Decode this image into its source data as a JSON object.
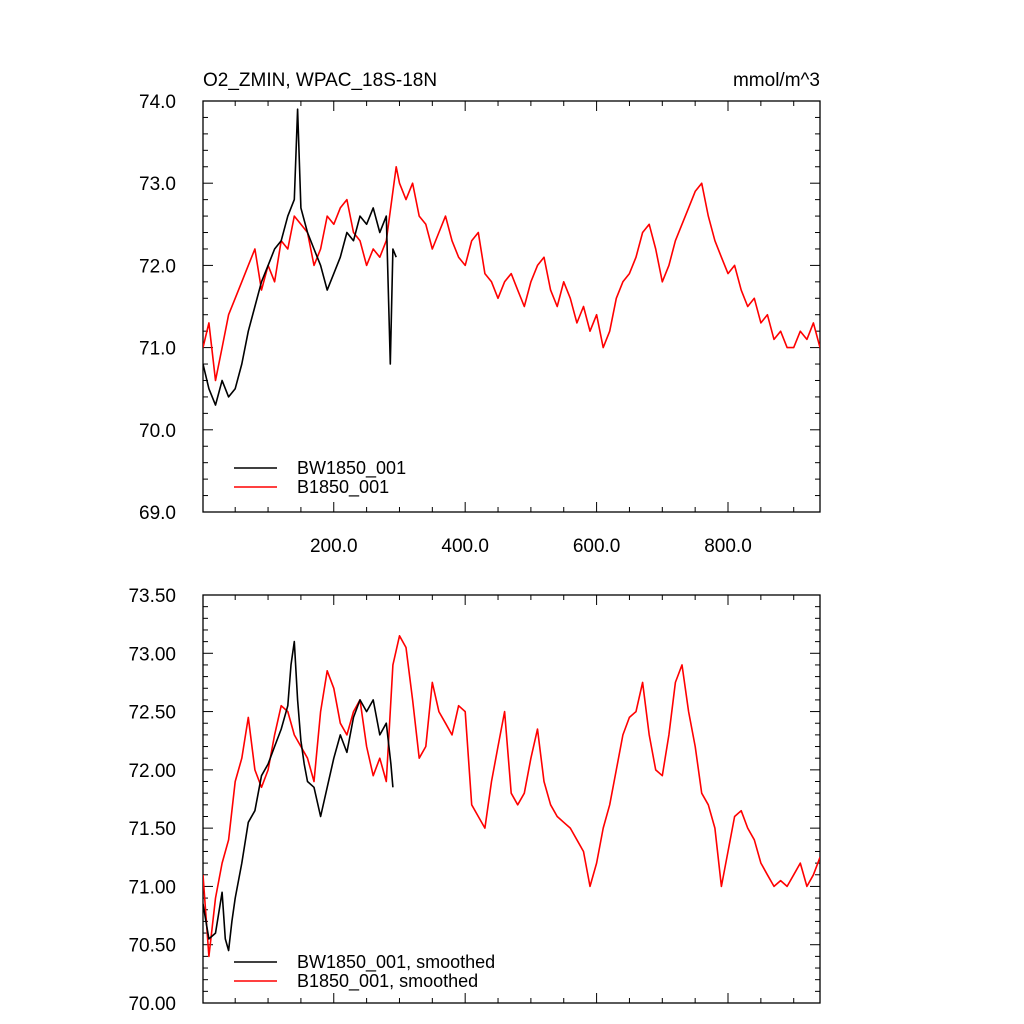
{
  "figure": {
    "title_left": "O2_ZMIN, WPAC_18S-18N",
    "title_right": "mmol/m^3"
  },
  "colors": {
    "bw": "#000000",
    "b": "#ff0000"
  },
  "chart_data": [
    {
      "type": "line",
      "title": "O2_ZMIN, WPAC_18S-18N",
      "units": "mmol/m^3",
      "xlim": [
        1,
        940
      ],
      "ylim": [
        69.0,
        74.0
      ],
      "x_ticks": [
        200,
        400,
        600,
        800
      ],
      "x_tick_labels": [
        "200.0",
        "400.0",
        "600.0",
        "800.0"
      ],
      "y_ticks": [
        69,
        70,
        71,
        72,
        73,
        74
      ],
      "y_tick_labels": [
        "69.0",
        "70.0",
        "71.0",
        "72.0",
        "73.0",
        "74.0"
      ],
      "grid": false,
      "legend_position": "bottom-left",
      "series": [
        {
          "name": "BW1850_001",
          "x": [
            1,
            10,
            20,
            30,
            40,
            50,
            60,
            70,
            80,
            90,
            100,
            110,
            120,
            130,
            140,
            145,
            150,
            160,
            170,
            180,
            190,
            200,
            210,
            220,
            230,
            240,
            250,
            260,
            270,
            280,
            286,
            290,
            295
          ],
          "y": [
            70.8,
            70.5,
            70.3,
            70.6,
            70.4,
            70.5,
            70.8,
            71.2,
            71.5,
            71.8,
            72.0,
            72.2,
            72.3,
            72.6,
            72.8,
            73.9,
            72.7,
            72.4,
            72.2,
            72.0,
            71.7,
            71.9,
            72.1,
            72.4,
            72.3,
            72.6,
            72.5,
            72.7,
            72.4,
            72.6,
            70.8,
            72.2,
            72.1
          ]
        },
        {
          "name": "B1850_001",
          "x": [
            1,
            10,
            20,
            30,
            40,
            50,
            60,
            70,
            80,
            90,
            100,
            110,
            120,
            130,
            140,
            150,
            160,
            170,
            180,
            190,
            200,
            210,
            220,
            230,
            240,
            250,
            260,
            270,
            280,
            290,
            295,
            300,
            310,
            320,
            330,
            340,
            350,
            360,
            370,
            380,
            390,
            400,
            410,
            420,
            430,
            440,
            450,
            460,
            470,
            480,
            490,
            500,
            510,
            520,
            530,
            540,
            550,
            560,
            570,
            580,
            590,
            600,
            610,
            620,
            630,
            640,
            650,
            660,
            670,
            680,
            690,
            700,
            710,
            720,
            730,
            740,
            750,
            760,
            770,
            780,
            790,
            800,
            810,
            820,
            830,
            840,
            850,
            860,
            870,
            880,
            890,
            900,
            910,
            920,
            930,
            940
          ],
          "y": [
            71.0,
            71.3,
            70.6,
            71.0,
            71.4,
            71.6,
            71.8,
            72.0,
            72.2,
            71.7,
            72.0,
            71.8,
            72.3,
            72.2,
            72.6,
            72.5,
            72.4,
            72.0,
            72.2,
            72.6,
            72.5,
            72.7,
            72.8,
            72.4,
            72.3,
            72.0,
            72.2,
            72.1,
            72.3,
            72.9,
            73.2,
            73.0,
            72.8,
            73.0,
            72.6,
            72.5,
            72.2,
            72.4,
            72.6,
            72.3,
            72.1,
            72.0,
            72.3,
            72.4,
            71.9,
            71.8,
            71.6,
            71.8,
            71.9,
            71.7,
            71.5,
            71.8,
            72.0,
            72.1,
            71.7,
            71.5,
            71.8,
            71.6,
            71.3,
            71.5,
            71.2,
            71.4,
            71.0,
            71.2,
            71.6,
            71.8,
            71.9,
            72.1,
            72.4,
            72.5,
            72.2,
            71.8,
            72.0,
            72.3,
            72.5,
            72.7,
            72.9,
            73.0,
            72.6,
            72.3,
            72.1,
            71.9,
            72.0,
            71.7,
            71.5,
            71.6,
            71.3,
            71.4,
            71.1,
            71.2,
            71.0,
            71.0,
            71.2,
            71.1,
            71.3,
            71.0
          ]
        }
      ]
    },
    {
      "type": "line",
      "xlim": [
        1,
        940
      ],
      "ylim": [
        70.0,
        73.5
      ],
      "x_ticks": [
        200,
        400,
        600,
        800
      ],
      "y_ticks": [
        70.0,
        70.5,
        71.0,
        71.5,
        72.0,
        72.5,
        73.0,
        73.5
      ],
      "y_tick_labels": [
        "70.00",
        "70.50",
        "71.00",
        "71.50",
        "72.00",
        "72.50",
        "73.00",
        "73.50"
      ],
      "grid": false,
      "legend_position": "bottom-left",
      "series": [
        {
          "name": "BW1850_001, smoothed",
          "x": [
            1,
            10,
            20,
            30,
            35,
            40,
            45,
            50,
            55,
            60,
            70,
            80,
            90,
            100,
            110,
            120,
            130,
            135,
            140,
            145,
            150,
            155,
            160,
            170,
            180,
            190,
            200,
            210,
            220,
            230,
            240,
            250,
            260,
            270,
            280,
            287,
            290
          ],
          "y": [
            70.85,
            70.55,
            70.6,
            70.95,
            70.55,
            70.45,
            70.7,
            70.9,
            71.05,
            71.2,
            71.55,
            71.65,
            71.95,
            72.05,
            72.2,
            72.35,
            72.55,
            72.9,
            73.1,
            72.6,
            72.25,
            72.05,
            71.9,
            71.85,
            71.6,
            71.85,
            72.1,
            72.3,
            72.15,
            72.45,
            72.6,
            72.5,
            72.6,
            72.3,
            72.4,
            72.05,
            71.85
          ]
        },
        {
          "name": "B1850_001, smoothed",
          "x": [
            1,
            10,
            20,
            30,
            40,
            50,
            60,
            70,
            80,
            90,
            100,
            110,
            120,
            130,
            140,
            150,
            160,
            170,
            180,
            190,
            200,
            210,
            220,
            230,
            240,
            250,
            260,
            270,
            280,
            290,
            300,
            310,
            320,
            330,
            340,
            350,
            360,
            370,
            380,
            390,
            400,
            410,
            420,
            430,
            440,
            450,
            460,
            470,
            480,
            490,
            500,
            510,
            520,
            530,
            540,
            550,
            560,
            570,
            580,
            590,
            600,
            610,
            620,
            630,
            640,
            650,
            660,
            670,
            680,
            690,
            700,
            710,
            720,
            730,
            740,
            750,
            760,
            770,
            780,
            790,
            800,
            810,
            820,
            830,
            840,
            850,
            860,
            870,
            880,
            890,
            900,
            910,
            920,
            930,
            940
          ],
          "y": [
            71.1,
            70.4,
            70.9,
            71.2,
            71.4,
            71.9,
            72.1,
            72.45,
            72.0,
            71.85,
            72.0,
            72.3,
            72.55,
            72.5,
            72.3,
            72.2,
            72.1,
            71.9,
            72.5,
            72.85,
            72.7,
            72.4,
            72.3,
            72.5,
            72.6,
            72.2,
            71.95,
            72.1,
            71.9,
            72.9,
            73.15,
            73.05,
            72.6,
            72.1,
            72.2,
            72.75,
            72.5,
            72.4,
            72.3,
            72.55,
            72.5,
            71.7,
            71.6,
            71.5,
            71.9,
            72.2,
            72.5,
            71.8,
            71.7,
            71.8,
            72.1,
            72.35,
            71.9,
            71.7,
            71.6,
            71.55,
            71.5,
            71.4,
            71.3,
            71.0,
            71.2,
            71.5,
            71.7,
            72.0,
            72.3,
            72.45,
            72.5,
            72.75,
            72.3,
            72.0,
            71.95,
            72.3,
            72.75,
            72.9,
            72.5,
            72.2,
            71.8,
            71.7,
            71.5,
            71.0,
            71.3,
            71.6,
            71.65,
            71.5,
            71.4,
            71.2,
            71.1,
            71.0,
            71.05,
            71.0,
            71.1,
            71.2,
            71.0,
            71.1,
            71.25
          ]
        }
      ]
    }
  ]
}
